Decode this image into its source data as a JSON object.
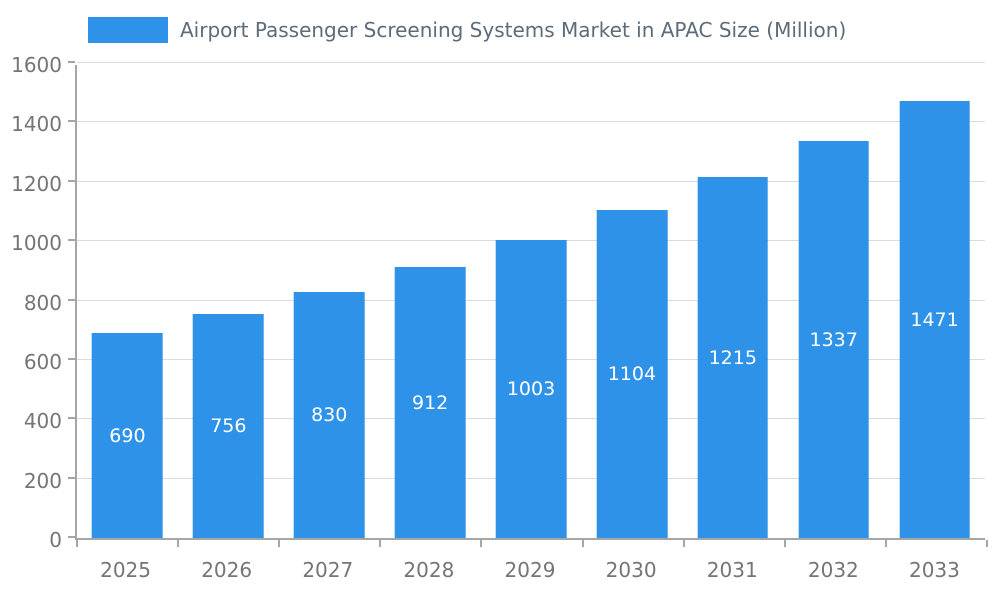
{
  "colors": {
    "bar": "#2E93E8",
    "title_text": "#5E6B78",
    "axis_text": "#757575",
    "grid_line": "#DBDBDB",
    "axis_line": "#A6A6A6",
    "bar_label_text": "#FFFFFF",
    "background": "#FFFFFF"
  },
  "legend": {
    "label": "Airport Passenger Screening Systems Market in APAC Size (Million)"
  },
  "chart_data": {
    "type": "bar",
    "title": "Airport Passenger Screening Systems Market in APAC Size (Million)",
    "categories": [
      "2025",
      "2026",
      "2027",
      "2028",
      "2029",
      "2030",
      "2031",
      "2032",
      "2033"
    ],
    "values": [
      690,
      756,
      830,
      912,
      1003,
      1104,
      1215,
      1337,
      1471
    ],
    "xlabel": "",
    "ylabel": "",
    "ylim": [
      0,
      1600
    ],
    "ytick_step": 200,
    "ytick_labels": [
      "0",
      "200",
      "400",
      "600",
      "800",
      "1000",
      "1200",
      "1400",
      "1600"
    ],
    "grid": true,
    "legend_position": "top-left",
    "bar_labels": "inside-centered"
  }
}
